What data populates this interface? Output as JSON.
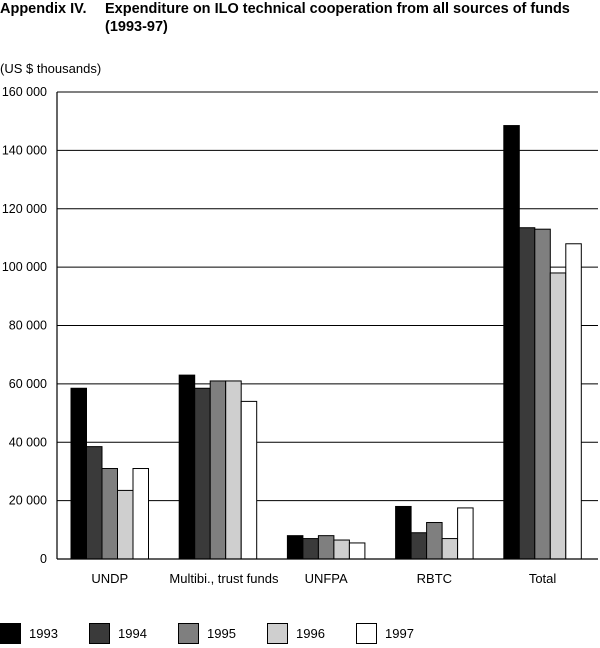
{
  "header": {
    "label": "Appendix IV.",
    "title": "Expenditure on ILO technical cooperation from all sources of funds (1993-97)"
  },
  "colors": {
    "1993": "#000000",
    "1994": "#3a3a3a",
    "1995": "#7f7f7f",
    "1996": "#cfcfcf",
    "1997": "#ffffff"
  },
  "chart_data": {
    "type": "bar",
    "title": "Expenditure on ILO technical cooperation from all sources of funds (1993-97)",
    "ylabel": "(US $ thousands)",
    "xlabel": "",
    "ylim": [
      0,
      160000
    ],
    "grid": true,
    "legend_position": "bottom",
    "yticks": [
      0,
      20000,
      40000,
      60000,
      80000,
      100000,
      120000,
      140000,
      160000
    ],
    "ytick_labels": [
      "0",
      "20 000",
      "40 000",
      "60 000",
      "80 000",
      "100 000",
      "120 000",
      "140 000",
      "160 000"
    ],
    "categories": [
      "UNDP",
      "Multibi., trust funds",
      "UNFPA",
      "RBTC",
      "Total"
    ],
    "series": [
      {
        "name": "1993",
        "values": [
          58500,
          63000,
          8000,
          18000,
          148500
        ]
      },
      {
        "name": "1994",
        "values": [
          38500,
          58500,
          7000,
          9000,
          113500
        ]
      },
      {
        "name": "1995",
        "values": [
          31000,
          61000,
          8000,
          12500,
          113000
        ]
      },
      {
        "name": "1996",
        "values": [
          23500,
          61000,
          6500,
          7000,
          98000
        ]
      },
      {
        "name": "1997",
        "values": [
          31000,
          54000,
          5500,
          17500,
          108000
        ]
      }
    ]
  }
}
